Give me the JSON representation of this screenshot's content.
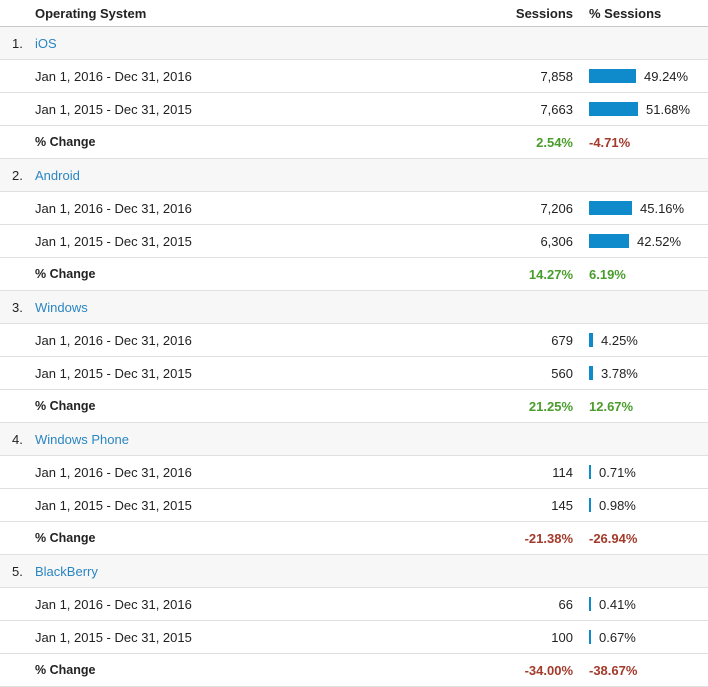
{
  "header": {
    "os_label": "Operating System",
    "sessions_label": "Sessions",
    "pct_sessions_label": "% Sessions"
  },
  "colors": {
    "bar": "#0f8acb",
    "link": "#2a86c2",
    "positive": "#4a9d2c",
    "negative": "#a33a2b"
  },
  "change_label": "% Change",
  "groups": [
    {
      "rank": "1.",
      "name": "iOS",
      "rows": [
        {
          "date": "Jan 1, 2016 - Dec 31, 2016",
          "sessions": "7,858",
          "pct": "49.24%",
          "pct_value": 49.24
        },
        {
          "date": "Jan 1, 2015 - Dec 31, 2015",
          "sessions": "7,663",
          "pct": "51.68%",
          "pct_value": 51.68
        }
      ],
      "change": {
        "sessions": "2.54%",
        "sessions_sign": "pos",
        "pct": "-4.71%",
        "pct_sign": "neg"
      }
    },
    {
      "rank": "2.",
      "name": "Android",
      "rows": [
        {
          "date": "Jan 1, 2016 - Dec 31, 2016",
          "sessions": "7,206",
          "pct": "45.16%",
          "pct_value": 45.16
        },
        {
          "date": "Jan 1, 2015 - Dec 31, 2015",
          "sessions": "6,306",
          "pct": "42.52%",
          "pct_value": 42.52
        }
      ],
      "change": {
        "sessions": "14.27%",
        "sessions_sign": "pos",
        "pct": "6.19%",
        "pct_sign": "pos"
      }
    },
    {
      "rank": "3.",
      "name": "Windows",
      "rows": [
        {
          "date": "Jan 1, 2016 - Dec 31, 2016",
          "sessions": "679",
          "pct": "4.25%",
          "pct_value": 4.25
        },
        {
          "date": "Jan 1, 2015 - Dec 31, 2015",
          "sessions": "560",
          "pct": "3.78%",
          "pct_value": 3.78
        }
      ],
      "change": {
        "sessions": "21.25%",
        "sessions_sign": "pos",
        "pct": "12.67%",
        "pct_sign": "pos"
      }
    },
    {
      "rank": "4.",
      "name": "Windows Phone",
      "rows": [
        {
          "date": "Jan 1, 2016 - Dec 31, 2016",
          "sessions": "114",
          "pct": "0.71%",
          "pct_value": 0.71
        },
        {
          "date": "Jan 1, 2015 - Dec 31, 2015",
          "sessions": "145",
          "pct": "0.98%",
          "pct_value": 0.98
        }
      ],
      "change": {
        "sessions": "-21.38%",
        "sessions_sign": "neg",
        "pct": "-26.94%",
        "pct_sign": "neg"
      }
    },
    {
      "rank": "5.",
      "name": "BlackBerry",
      "rows": [
        {
          "date": "Jan 1, 2016 - Dec 31, 2016",
          "sessions": "66",
          "pct": "0.41%",
          "pct_value": 0.41
        },
        {
          "date": "Jan 1, 2015 - Dec 31, 2015",
          "sessions": "100",
          "pct": "0.67%",
          "pct_value": 0.67
        }
      ],
      "change": {
        "sessions": "-34.00%",
        "sessions_sign": "neg",
        "pct": "-38.67%",
        "pct_sign": "neg"
      }
    }
  ]
}
